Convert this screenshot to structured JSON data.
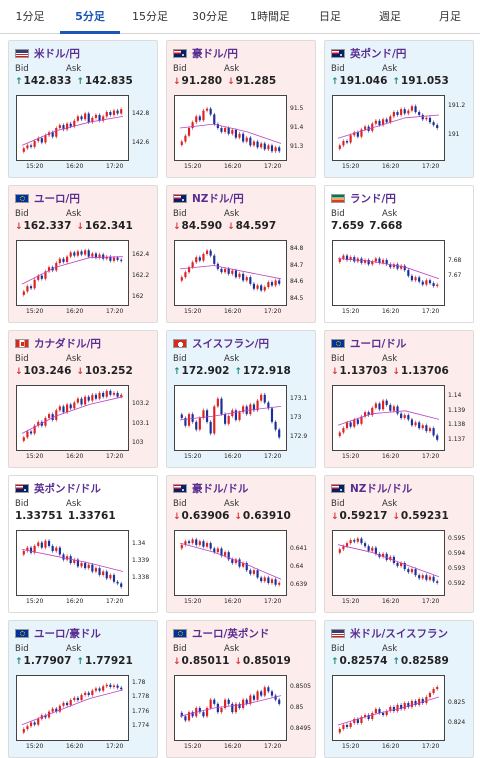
{
  "tabs": [
    "1分足",
    "5分足",
    "15分足",
    "30分足",
    "1時間足",
    "日足",
    "週足",
    "月足"
  ],
  "active_tab": 1,
  "labels": {
    "bid": "Bid",
    "ask": "Ask"
  },
  "colors": {
    "accent": "#1a56b8",
    "up_bg": "#e8f4fc",
    "down_bg": "#fcecec",
    "up_arrow": "#1a8a7a",
    "down_arrow": "#d33333",
    "candle_up": "#dd2222",
    "candle_down": "#1a2f9a",
    "ma_line": "#c040c8"
  },
  "cards": [
    {
      "pair": "米ドル/円",
      "flag": "us-flag",
      "dir": "up",
      "bid": "142.833",
      "ask": "142.835",
      "chart_data": {
        "type": "candlestick",
        "x_ticks": [
          "15:20",
          "16:20",
          "17:20"
        ],
        "y_ticks": [
          "142.8",
          "142.6"
        ],
        "ylim": [
          142.5,
          142.9
        ],
        "close": [
          142.56,
          142.58,
          142.57,
          142.61,
          142.63,
          142.6,
          142.65,
          142.67,
          142.64,
          142.7,
          142.72,
          142.69,
          142.73,
          142.71,
          142.75,
          142.78,
          142.76,
          142.8,
          142.74,
          142.77,
          142.79,
          142.75,
          142.78,
          142.81,
          142.79,
          142.82,
          142.8,
          142.83
        ],
        "ma": [
          142.58,
          142.68,
          142.74,
          142.78
        ]
      }
    },
    {
      "pair": "豪ドル/円",
      "flag": "au-flag",
      "dir": "down",
      "bid": "91.280",
      "ask": "91.285",
      "chart_data": {
        "type": "candlestick",
        "x_ticks": [
          "15:20",
          "16:20",
          "17:20"
        ],
        "y_ticks": [
          "91.5",
          "91.4",
          "91.3"
        ],
        "ylim": [
          91.25,
          91.55
        ],
        "close": [
          91.33,
          91.36,
          91.4,
          91.43,
          91.46,
          91.44,
          91.49,
          91.5,
          91.47,
          91.42,
          91.4,
          91.38,
          91.4,
          91.37,
          91.39,
          91.35,
          91.37,
          91.33,
          91.35,
          91.31,
          91.33,
          91.3,
          91.32,
          91.29,
          91.31,
          91.28,
          91.3,
          91.28
        ],
        "ma": [
          91.4,
          91.42,
          91.38,
          91.32
        ]
      }
    },
    {
      "pair": "英ポンド/円",
      "flag": "gb-flag",
      "dir": "up",
      "bid": "191.046",
      "ask": "191.053",
      "chart_data": {
        "type": "candlestick",
        "x_ticks": [
          "15:20",
          "16:20",
          "17:20"
        ],
        "y_ticks": [
          "191.2",
          "191"
        ],
        "ylim": [
          190.85,
          191.25
        ],
        "close": [
          190.93,
          190.96,
          190.95,
          191.0,
          191.02,
          190.99,
          191.04,
          191.06,
          191.03,
          191.08,
          191.1,
          191.07,
          191.11,
          191.09,
          191.13,
          191.16,
          191.14,
          191.18,
          191.15,
          191.17,
          191.2,
          191.16,
          191.14,
          191.11,
          191.12,
          191.09,
          191.07,
          191.05
        ],
        "ma": [
          190.98,
          191.05,
          191.12,
          191.14
        ]
      }
    },
    {
      "pair": "ユーロ/円",
      "flag": "eu-flag",
      "dir": "down",
      "bid": "162.337",
      "ask": "162.341",
      "chart_data": {
        "type": "candlestick",
        "x_ticks": [
          "15:20",
          "16:20",
          "17:20"
        ],
        "y_ticks": [
          "162.4",
          "162.2",
          "162"
        ],
        "ylim": [
          161.95,
          162.5
        ],
        "close": [
          162.05,
          162.1,
          162.08,
          162.16,
          162.2,
          162.17,
          162.24,
          162.28,
          162.25,
          162.32,
          162.36,
          162.33,
          162.38,
          162.42,
          162.39,
          162.43,
          162.4,
          162.44,
          162.38,
          162.41,
          162.37,
          162.4,
          162.36,
          162.38,
          162.34,
          162.37,
          162.35,
          162.34
        ],
        "ma": [
          162.12,
          162.28,
          162.37,
          162.38
        ]
      }
    },
    {
      "pair": "NZドル/円",
      "flag": "nz-flag",
      "dir": "down",
      "bid": "84.590",
      "ask": "84.597",
      "chart_data": {
        "type": "candlestick",
        "x_ticks": [
          "15:20",
          "16:20",
          "17:20"
        ],
        "y_ticks": [
          "84.8",
          "84.7",
          "84.6",
          "84.5"
        ],
        "ylim": [
          84.48,
          84.83
        ],
        "close": [
          84.63,
          84.66,
          84.69,
          84.72,
          84.75,
          84.73,
          84.77,
          84.79,
          84.76,
          84.71,
          84.68,
          84.66,
          84.68,
          84.65,
          84.67,
          84.63,
          84.65,
          84.61,
          84.63,
          84.59,
          84.56,
          84.58,
          84.55,
          84.57,
          84.6,
          84.58,
          84.61,
          84.59
        ],
        "ma": [
          84.68,
          84.7,
          84.66,
          84.62
        ]
      }
    },
    {
      "pair": "ランド/円",
      "flag": "za-flag",
      "dir": "flat",
      "bid": "7.659",
      "ask": "7.668",
      "chart_data": {
        "type": "candlestick",
        "x_ticks": [
          "15:20",
          "16:20",
          "17:20"
        ],
        "y_ticks": [
          "7.68",
          "7.67"
        ],
        "ylim": [
          7.652,
          7.692
        ],
        "close": [
          7.682,
          7.684,
          7.681,
          7.683,
          7.68,
          7.682,
          7.679,
          7.681,
          7.678,
          7.68,
          7.682,
          7.679,
          7.681,
          7.678,
          7.676,
          7.678,
          7.675,
          7.677,
          7.674,
          7.67,
          7.667,
          7.669,
          7.666,
          7.664,
          7.667,
          7.665,
          7.663,
          7.664
        ],
        "ma": [
          7.682,
          7.68,
          7.676,
          7.668
        ]
      }
    },
    {
      "pair": "カナダドル/円",
      "flag": "ca-flag",
      "dir": "down",
      "bid": "103.246",
      "ask": "103.252",
      "chart_data": {
        "type": "candlestick",
        "x_ticks": [
          "15:20",
          "16:20",
          "17:20"
        ],
        "y_ticks": [
          "103.2",
          "103.1",
          "103"
        ],
        "ylim": [
          102.98,
          103.28
        ],
        "close": [
          103.03,
          103.06,
          103.05,
          103.09,
          103.11,
          103.09,
          103.13,
          103.15,
          103.12,
          103.17,
          103.19,
          103.16,
          103.2,
          103.18,
          103.21,
          103.23,
          103.2,
          103.24,
          103.22,
          103.25,
          103.23,
          103.26,
          103.24,
          103.27,
          103.25,
          103.26,
          103.24,
          103.25
        ],
        "ma": [
          103.05,
          103.14,
          103.2,
          103.24
        ]
      }
    },
    {
      "pair": "スイスフラン/円",
      "flag": "ch-flag",
      "dir": "up",
      "bid": "172.902",
      "ask": "172.918",
      "chart_data": {
        "type": "candlestick",
        "x_ticks": [
          "15:20",
          "16:20",
          "17:20"
        ],
        "y_ticks": [
          "173.1",
          "173",
          "172.9"
        ],
        "ylim": [
          172.85,
          173.15
        ],
        "close": [
          173.0,
          172.96,
          173.02,
          172.98,
          172.94,
          173.0,
          173.04,
          172.98,
          172.92,
          173.06,
          173.1,
          173.02,
          172.97,
          173.01,
          173.04,
          172.99,
          173.03,
          173.06,
          173.02,
          173.07,
          173.04,
          173.09,
          173.12,
          173.08,
          173.05,
          172.98,
          172.94,
          172.9
        ],
        "ma": [
          172.99,
          173.01,
          173.04,
          173.06
        ]
      }
    },
    {
      "pair": "ユーロ/ドル",
      "flag": "eu-us-flag",
      "dir": "down",
      "bid": "1.13703",
      "ask": "1.13706",
      "chart_data": {
        "type": "candlestick",
        "x_ticks": [
          "15:20",
          "16:20",
          "17:20"
        ],
        "y_ticks": [
          "1.14",
          "1.139",
          "1.138",
          "1.137"
        ],
        "ylim": [
          1.1365,
          1.1405
        ],
        "close": [
          1.1375,
          1.1378,
          1.1382,
          1.1379,
          1.1384,
          1.1381,
          1.1386,
          1.1389,
          1.1387,
          1.1392,
          1.1395,
          1.1391,
          1.1397,
          1.1394,
          1.139,
          1.1393,
          1.1388,
          1.1385,
          1.1387,
          1.1384,
          1.138,
          1.1382,
          1.1378,
          1.138,
          1.1376,
          1.1378,
          1.1373,
          1.137
        ],
        "ma": [
          1.138,
          1.1388,
          1.139,
          1.1384
        ]
      }
    },
    {
      "pair": "英ポンド/ドル",
      "flag": "gb-us-flag",
      "dir": "flat",
      "bid": "1.33751",
      "ask": "1.33761",
      "chart_data": {
        "type": "candlestick",
        "x_ticks": [
          "15:20",
          "16:20",
          "17:20"
        ],
        "y_ticks": [
          "1.34",
          "1.339",
          "1.338"
        ],
        "ylim": [
          1.3372,
          1.3406
        ],
        "close": [
          1.3396,
          1.3398,
          1.3395,
          1.3399,
          1.3401,
          1.3398,
          1.3402,
          1.3399,
          1.3396,
          1.3398,
          1.3394,
          1.3391,
          1.3393,
          1.3389,
          1.3391,
          1.3387,
          1.3389,
          1.3386,
          1.3388,
          1.3384,
          1.3386,
          1.3382,
          1.3384,
          1.338,
          1.3382,
          1.3378,
          1.3377,
          1.3375
        ],
        "ma": [
          1.3397,
          1.3393,
          1.3389,
          1.3384
        ]
      }
    },
    {
      "pair": "豪ドル/ドル",
      "flag": "au-us-flag",
      "dir": "down",
      "bid": "0.63906",
      "ask": "0.63910",
      "chart_data": {
        "type": "candlestick",
        "x_ticks": [
          "15:20",
          "16:20",
          "17:20"
        ],
        "y_ticks": [
          "0.641",
          "0.64",
          "0.639"
        ],
        "ylim": [
          0.6386,
          0.6418
        ],
        "close": [
          0.6412,
          0.6414,
          0.6413,
          0.6415,
          0.6412,
          0.6414,
          0.6411,
          0.6413,
          0.641,
          0.6408,
          0.641,
          0.6406,
          0.6408,
          0.6404,
          0.6402,
          0.6404,
          0.64,
          0.6402,
          0.6398,
          0.6396,
          0.6398,
          0.6394,
          0.6392,
          0.6394,
          0.6391,
          0.6393,
          0.639,
          0.6391
        ],
        "ma": [
          0.6413,
          0.6408,
          0.6401,
          0.6393
        ]
      }
    },
    {
      "pair": "NZドル/ドル",
      "flag": "nz-us-flag",
      "dir": "down",
      "bid": "0.59217",
      "ask": "0.59231",
      "chart_data": {
        "type": "candlestick",
        "x_ticks": [
          "15:20",
          "16:20",
          "17:20"
        ],
        "y_ticks": [
          "0.595",
          "0.594",
          "0.593",
          "0.592"
        ],
        "ylim": [
          0.5915,
          0.5953
        ],
        "close": [
          0.5943,
          0.5945,
          0.5947,
          0.5949,
          0.5948,
          0.595,
          0.5947,
          0.5945,
          0.5942,
          0.5944,
          0.594,
          0.5938,
          0.594,
          0.5936,
          0.5938,
          0.5934,
          0.5932,
          0.5934,
          0.593,
          0.5928,
          0.593,
          0.5926,
          0.5924,
          0.5926,
          0.5923,
          0.5925,
          0.5922,
          0.5921
        ],
        "ma": [
          0.5946,
          0.5941,
          0.5933,
          0.5925
        ]
      }
    },
    {
      "pair": "ユーロ/豪ドル",
      "flag": "eu-au-flag",
      "dir": "up",
      "bid": "1.77907",
      "ask": "1.77921",
      "chart_data": {
        "type": "candlestick",
        "x_ticks": [
          "15:20",
          "16:20",
          "17:20"
        ],
        "y_ticks": [
          "1.78",
          "1.778",
          "1.776",
          "1.774"
        ],
        "ylim": [
          1.7725,
          1.7805
        ],
        "close": [
          1.7736,
          1.774,
          1.7745,
          1.7742,
          1.775,
          1.7755,
          1.7752,
          1.776,
          1.7764,
          1.776,
          1.7768,
          1.7772,
          1.7769,
          1.7776,
          1.7779,
          1.7776,
          1.7783,
          1.7786,
          1.7783,
          1.7789,
          1.7792,
          1.7789,
          1.7795,
          1.7797,
          1.7794,
          1.7796,
          1.7793,
          1.7791
        ],
        "ma": [
          1.7742,
          1.776,
          1.7778,
          1.779
        ]
      }
    },
    {
      "pair": "ユーロ/英ポンド",
      "flag": "eu-gb-flag",
      "dir": "down",
      "bid": "0.85011",
      "ask": "0.85019",
      "chart_data": {
        "type": "candlestick",
        "x_ticks": [
          "15:20",
          "16:20",
          "17:20"
        ],
        "y_ticks": [
          "0.8505",
          "0.85",
          "0.8495"
        ],
        "ylim": [
          0.8493,
          0.8507
        ],
        "close": [
          0.8498,
          0.8497,
          0.8499,
          0.8498,
          0.85,
          0.8499,
          0.8498,
          0.85,
          0.8502,
          0.8501,
          0.8499,
          0.85,
          0.8502,
          0.8501,
          0.8499,
          0.8501,
          0.85,
          0.8502,
          0.8501,
          0.8503,
          0.8502,
          0.8504,
          0.8503,
          0.8505,
          0.8504,
          0.8503,
          0.8502,
          0.8501
        ],
        "ma": [
          0.8498,
          0.85,
          0.8501,
          0.8503
        ]
      }
    },
    {
      "pair": "米ドル/スイスフラン",
      "flag": "us-ch-flag",
      "dir": "up",
      "bid": "0.82574",
      "ask": "0.82589",
      "chart_data": {
        "type": "candlestick",
        "x_ticks": [
          "15:20",
          "16:20",
          "17:20"
        ],
        "y_ticks": [
          "0.825",
          "0.824"
        ],
        "ylim": [
          0.8233,
          0.8262
        ],
        "close": [
          0.8237,
          0.8239,
          0.8238,
          0.824,
          0.8242,
          0.824,
          0.8243,
          0.8244,
          0.8242,
          0.8245,
          0.8247,
          0.8245,
          0.8244,
          0.8246,
          0.8248,
          0.8246,
          0.8249,
          0.8247,
          0.825,
          0.8248,
          0.8251,
          0.8249,
          0.8252,
          0.825,
          0.8253,
          0.8255,
          0.8257,
          0.8258
        ],
        "ma": [
          0.8239,
          0.8244,
          0.8248,
          0.8253
        ]
      }
    }
  ]
}
